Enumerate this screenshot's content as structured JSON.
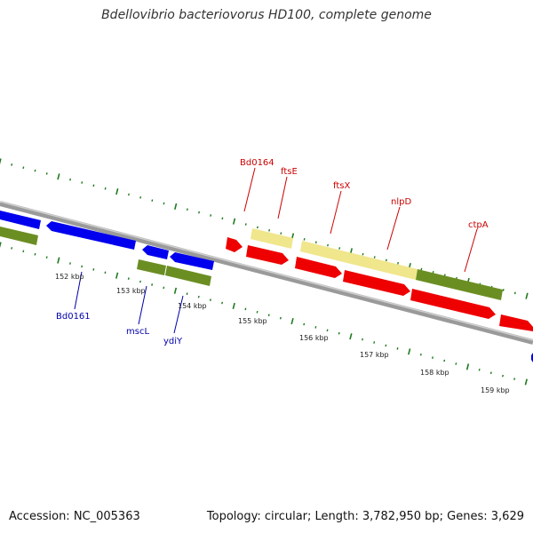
{
  "title": "Bdellovibrio bacteriovorus HD100, complete genome",
  "footer": {
    "accession": "Accession: NC_005363",
    "info": "Topology: circular; Length: 3,782,950 bp; Genes: 3,629"
  },
  "colors": {
    "backbone": "#8c8c8c",
    "tick": "#1f7a1f",
    "gene_forward": "#ee0000",
    "gene_reverse": "#0000ee",
    "cds_olive": "#6b8e23",
    "cds_pale": "#f0e68c",
    "label_forward": "#cc0000",
    "label_reverse": "#0000aa",
    "kbp_label": "#222222"
  },
  "kbp_labels": [
    "152 kbp",
    "153 kbp",
    "154 kbp",
    "155 kbp",
    "156 kbp",
    "157 kbp",
    "158 kbp",
    "159 kbp"
  ],
  "genes_forward": [
    {
      "label": "Bd0164"
    },
    {
      "label": "ftsE"
    },
    {
      "label": "ftsX"
    },
    {
      "label": "nlpD"
    },
    {
      "label": "ctpA"
    }
  ],
  "genes_reverse": [
    {
      "label": "Bd0161"
    },
    {
      "label": "mscL"
    },
    {
      "label": "ydiY"
    }
  ]
}
